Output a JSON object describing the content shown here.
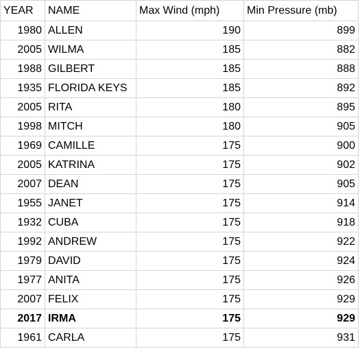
{
  "table": {
    "columns": [
      "YEAR",
      "NAME",
      "Max Wind (mph)",
      "Min Pressure (mb)"
    ],
    "rows": [
      {
        "year": 1980,
        "name": "ALLEN",
        "max_wind": 190,
        "min_pressure": 899
      },
      {
        "year": 2005,
        "name": "WILMA",
        "max_wind": 185,
        "min_pressure": 882
      },
      {
        "year": 1988,
        "name": "GILBERT",
        "max_wind": 185,
        "min_pressure": 888
      },
      {
        "year": 1935,
        "name": "FLORIDA KEYS",
        "max_wind": 185,
        "min_pressure": 892
      },
      {
        "year": 2005,
        "name": "RITA",
        "max_wind": 180,
        "min_pressure": 895
      },
      {
        "year": 1998,
        "name": "MITCH",
        "max_wind": 180,
        "min_pressure": 905
      },
      {
        "year": 1969,
        "name": "CAMILLE",
        "max_wind": 175,
        "min_pressure": 900
      },
      {
        "year": 2005,
        "name": "KATRINA",
        "max_wind": 175,
        "min_pressure": 902
      },
      {
        "year": 2007,
        "name": "DEAN",
        "max_wind": 175,
        "min_pressure": 905
      },
      {
        "year": 1955,
        "name": "JANET",
        "max_wind": 175,
        "min_pressure": 914
      },
      {
        "year": 1932,
        "name": "CUBA",
        "max_wind": 175,
        "min_pressure": 918
      },
      {
        "year": 1992,
        "name": "ANDREW",
        "max_wind": 175,
        "min_pressure": 922
      },
      {
        "year": 1979,
        "name": "DAVID",
        "max_wind": 175,
        "min_pressure": 924
      },
      {
        "year": 1977,
        "name": "ANITA",
        "max_wind": 175,
        "min_pressure": 926
      },
      {
        "year": 2007,
        "name": "FELIX",
        "max_wind": 175,
        "min_pressure": 929
      },
      {
        "year": 2017,
        "name": "IRMA",
        "max_wind": 175,
        "min_pressure": 929,
        "bold": true
      },
      {
        "year": 1961,
        "name": "CARLA",
        "max_wind": 175,
        "min_pressure": 931
      }
    ]
  }
}
